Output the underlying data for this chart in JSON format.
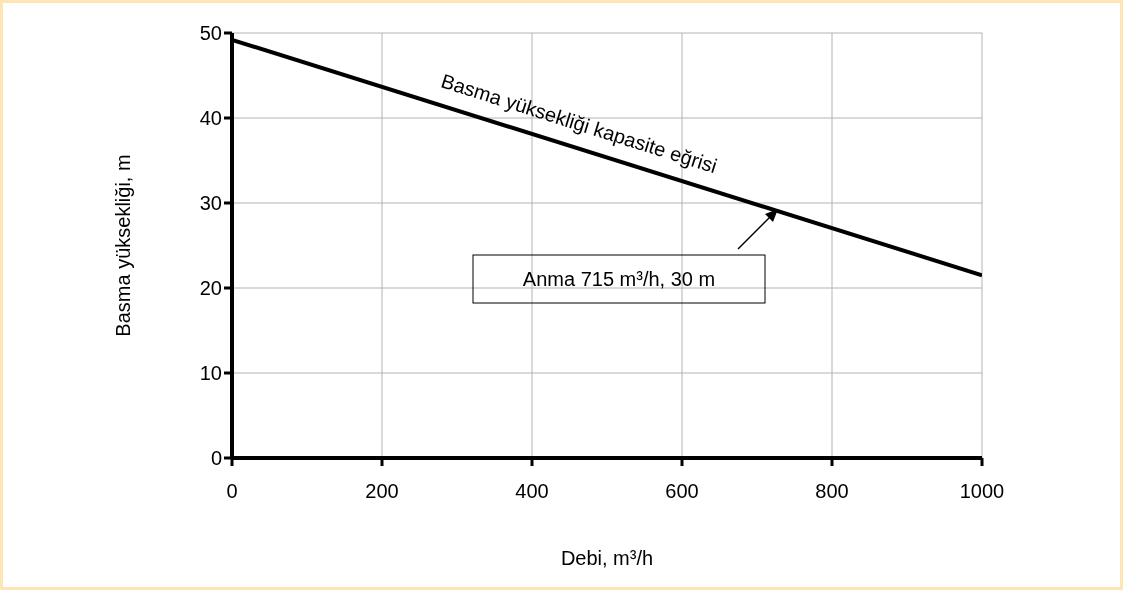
{
  "chart_data": {
    "type": "line",
    "xlabel": "Debi, m³/h",
    "ylabel": "Basma yüksekliği, m",
    "x": [
      0,
      1000
    ],
    "series": [
      {
        "name": "Basma yüksekliği kapasite eğrisi",
        "color": "#000000",
        "values": [
          49.2,
          21.5
        ]
      }
    ],
    "xlim": [
      0,
      1000
    ],
    "xticks": [
      0,
      200,
      400,
      600,
      800,
      1000
    ],
    "ylim": [
      0,
      50
    ],
    "yticks": [
      0,
      10,
      20,
      30,
      40,
      50
    ],
    "grid": true,
    "legend": false,
    "marker": "none",
    "line_style": "solid",
    "annotations": [
      "Anma 715 m³/h, 30 m"
    ]
  }
}
